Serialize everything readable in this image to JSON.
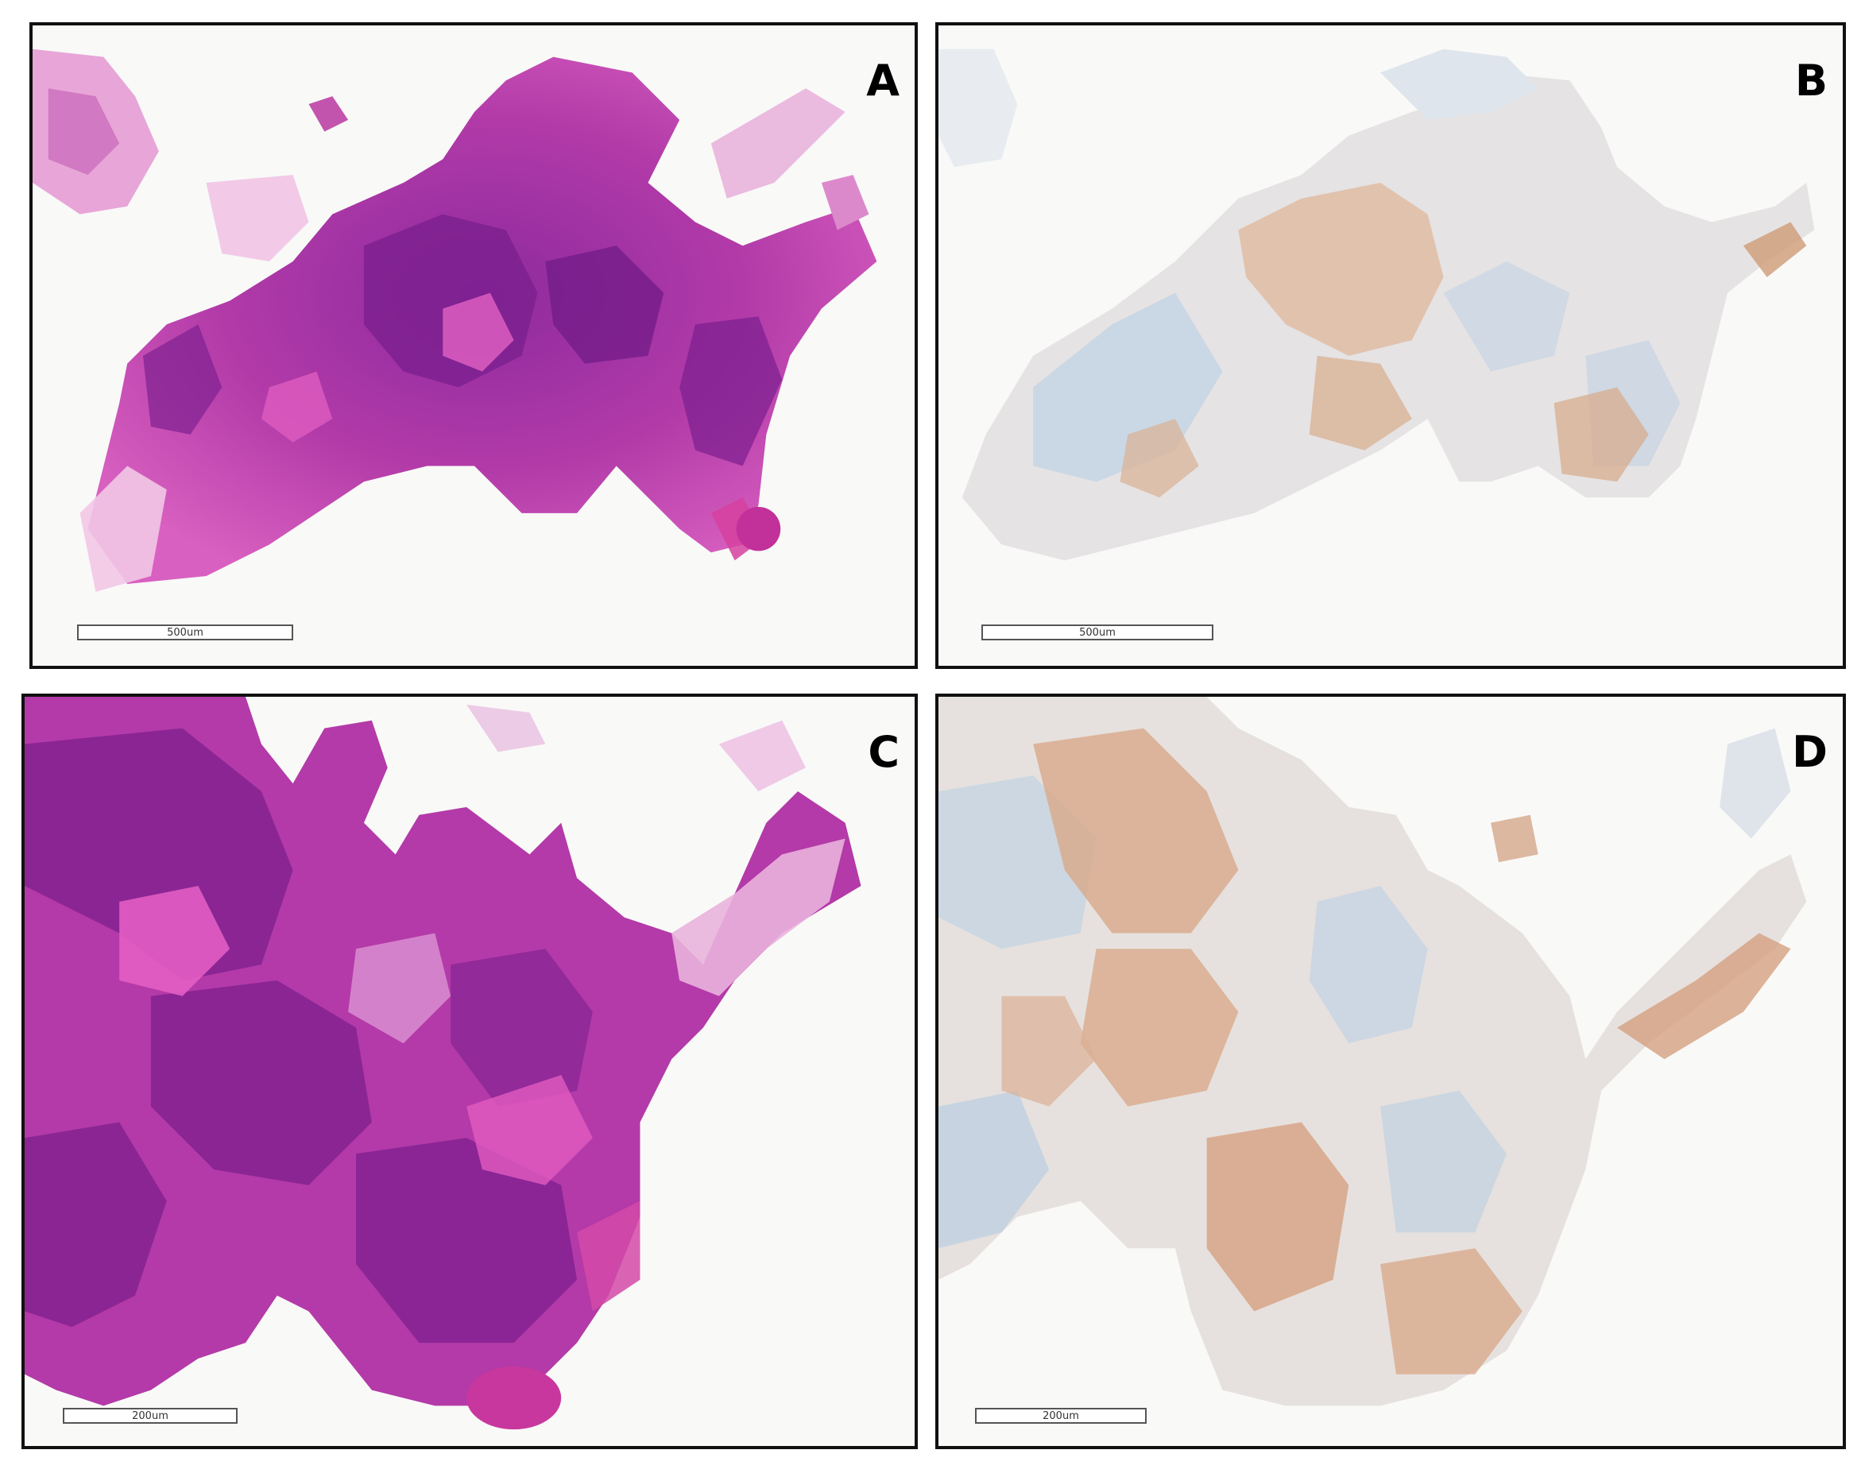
{
  "panels": [
    {
      "id": "a",
      "letter": "A",
      "scale_label": "500um",
      "stain": "H&E"
    },
    {
      "id": "b",
      "letter": "B",
      "scale_label": "500um",
      "stain": "IHC"
    },
    {
      "id": "c",
      "letter": "C",
      "scale_label": "200um",
      "stain": "H&E"
    },
    {
      "id": "d",
      "letter": "D",
      "scale_label": "200um",
      "stain": "IHC"
    }
  ],
  "colors": {
    "he_dark": "#8a1f9a",
    "he_mid": "#c43fae",
    "he_pink": "#e46ac6",
    "he_light": "#f0b6e0",
    "ihc_blue": "#b9cde0",
    "ihc_tan": "#e8d3c2",
    "ihc_brown": "#c98f62",
    "background": "#f9f9f8",
    "border": "#111111"
  }
}
